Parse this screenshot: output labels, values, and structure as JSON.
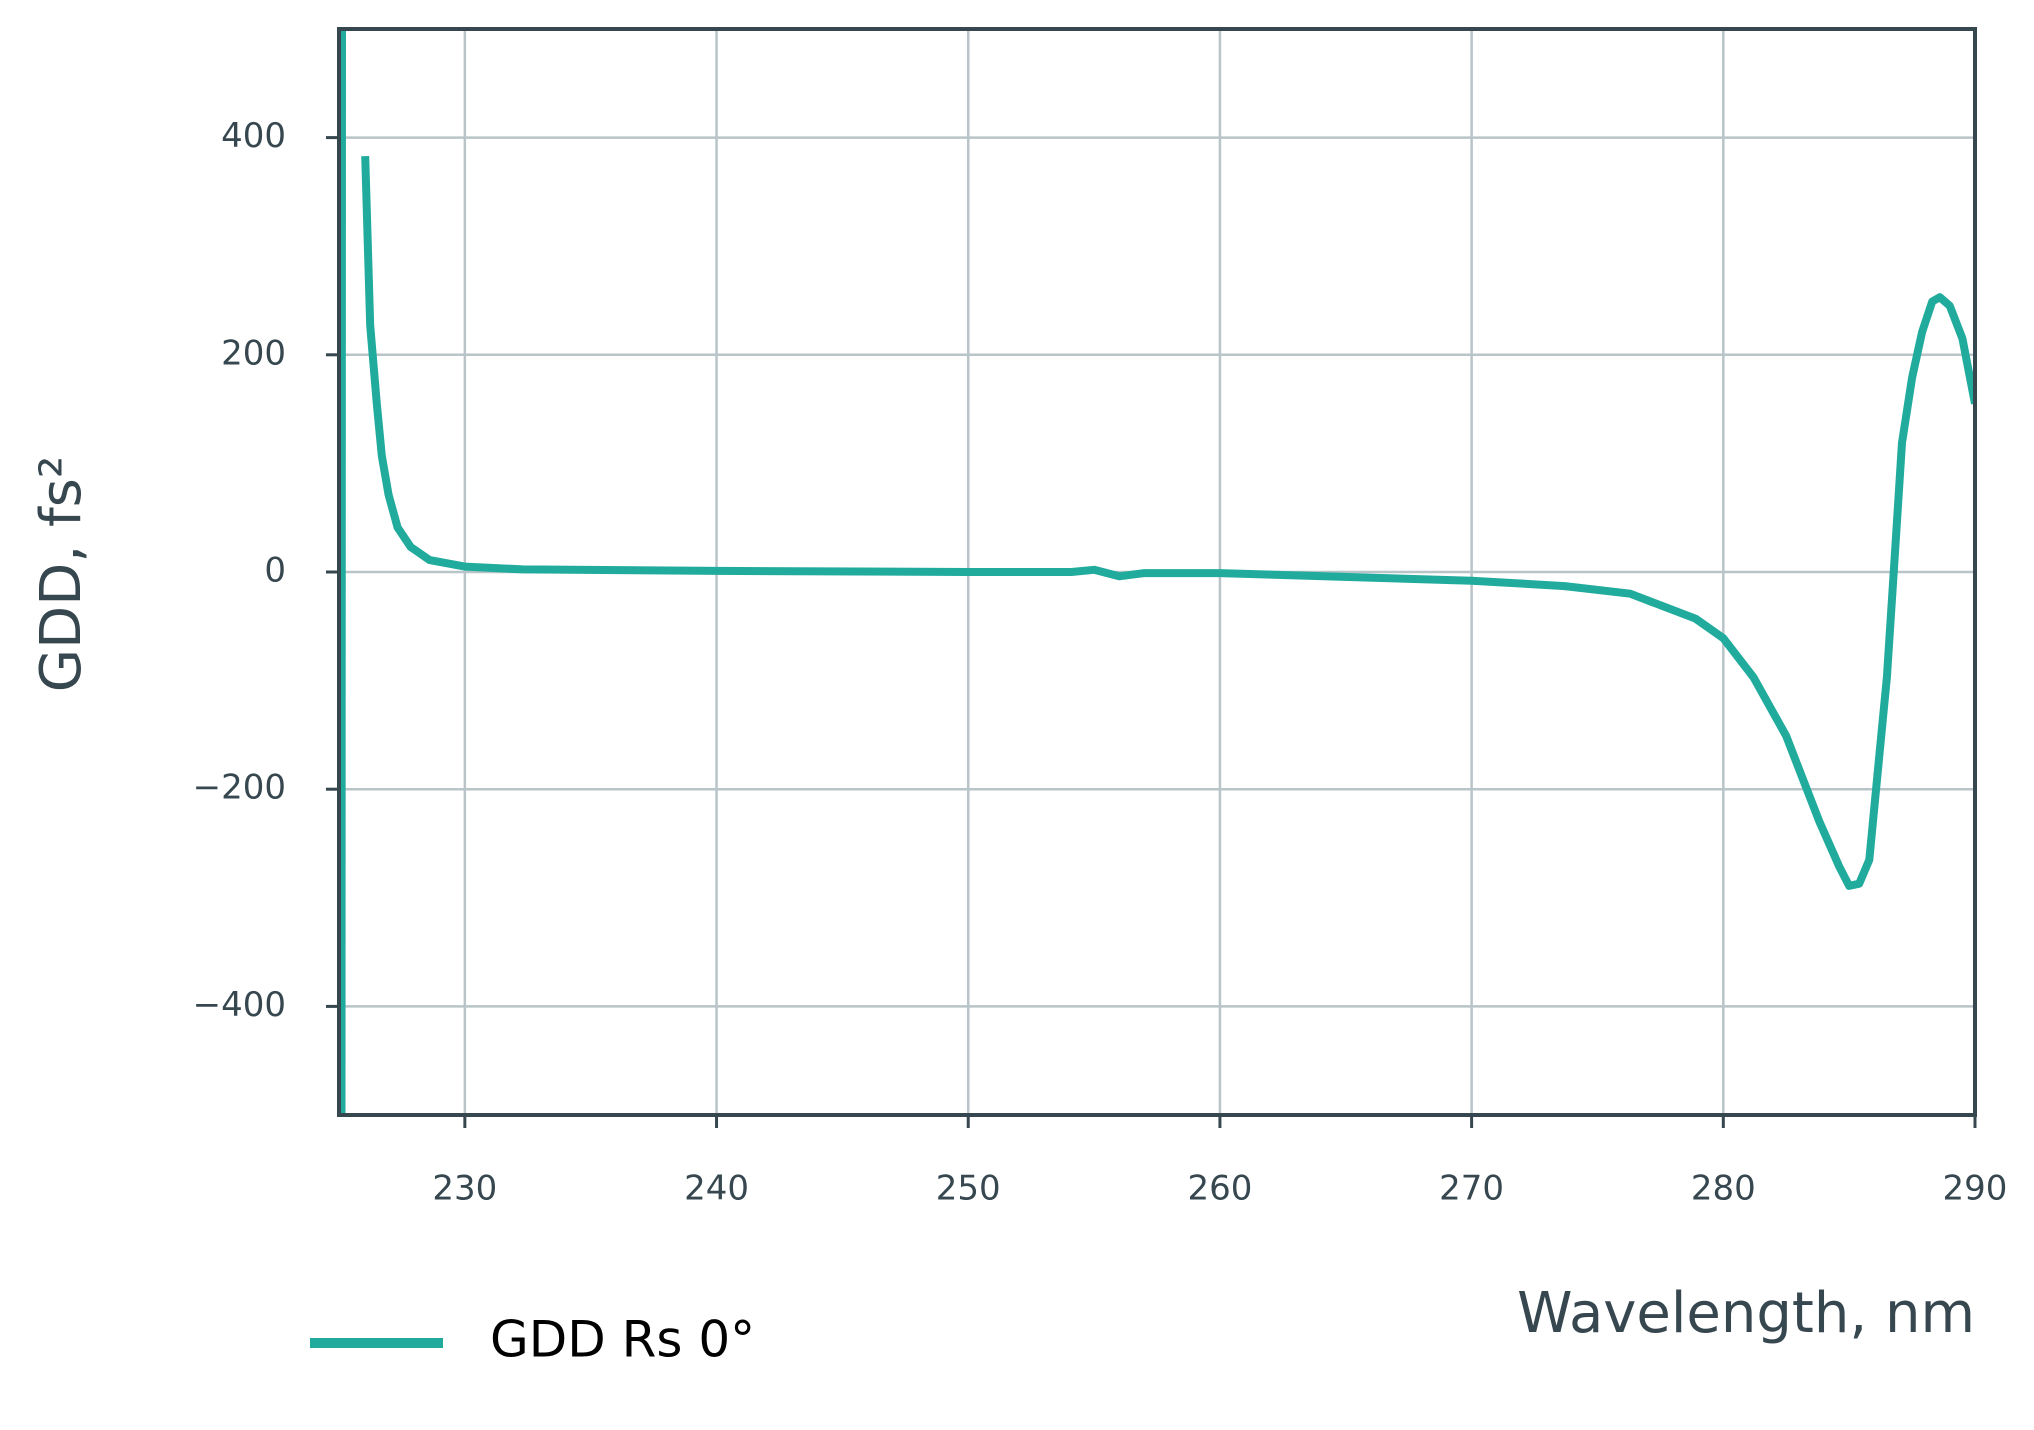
{
  "chart_data": {
    "type": "line",
    "xlabel": "Wavelength, nm",
    "ylabel": "GDD, fs²",
    "x": [
      225.1,
      225.12,
      225.83,
      226.04,
      226.24,
      226.5,
      226.7,
      226.97,
      227.33,
      227.85,
      228.6,
      230,
      232.3,
      240,
      250,
      254.1,
      255,
      256,
      257,
      260,
      270,
      273.7,
      276.3,
      278.9,
      280,
      281.2,
      282.5,
      283.8,
      284.6,
      285,
      285.4,
      285.8,
      286.1,
      286.5,
      286.8,
      287.1,
      287.5,
      287.9,
      288.3,
      288.6,
      289,
      289.5,
      290
    ],
    "series": [
      {
        "name": "GDD Rs 0°",
        "color": "#20ab9d",
        "values": [
          -500,
          500,
          null,
          383,
          227,
          155,
          107,
          71,
          41,
          23,
          11,
          5,
          2.4,
          1,
          0,
          0,
          2,
          -4,
          -1,
          -1,
          -8,
          -13,
          -20,
          -43,
          -61,
          -97,
          -151,
          -229,
          -271,
          -289,
          -287,
          -265,
          -193,
          -97,
          11,
          119,
          179,
          221,
          249,
          253,
          245,
          215,
          155
        ]
      }
    ],
    "xlim": [
      225,
      290
    ],
    "ylim": [
      -500,
      500
    ],
    "xticks": [
      230,
      240,
      250,
      260,
      270,
      280,
      290
    ],
    "yticks": [
      {
        "value": -400,
        "label": "−400"
      },
      {
        "value": -200,
        "label": "−200"
      },
      0,
      200,
      400
    ],
    "grid": true,
    "legend": "bottom-left"
  }
}
